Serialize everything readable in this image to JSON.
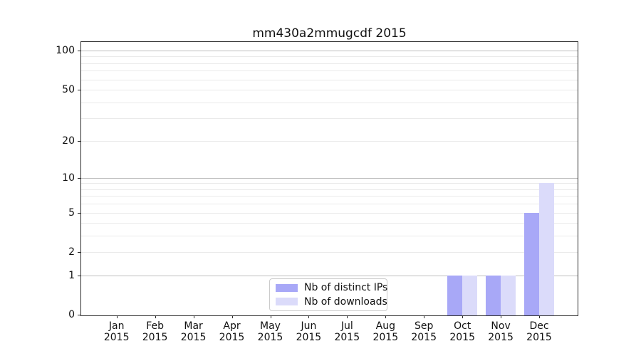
{
  "chart_data": {
    "type": "bar",
    "title": "mm430a2mmugcdf 2015",
    "xlabel": "",
    "ylabel": "",
    "categories": [
      "Jan 2015",
      "Feb 2015",
      "Mar 2015",
      "Apr 2015",
      "May 2015",
      "Jun 2015",
      "Jul 2015",
      "Aug 2015",
      "Sep 2015",
      "Oct 2015",
      "Nov 2015",
      "Dec 2015"
    ],
    "x_tick_months": [
      "Jan",
      "Feb",
      "Mar",
      "Apr",
      "May",
      "Jun",
      "Jul",
      "Aug",
      "Sep",
      "Oct",
      "Nov",
      "Dec"
    ],
    "x_tick_year": "2015",
    "series": [
      {
        "name": "Nb of distinct IPs",
        "color": "#a8a8f7",
        "values": [
          0,
          0,
          0,
          0,
          0,
          0,
          0,
          0,
          0,
          1,
          1,
          5
        ]
      },
      {
        "name": "Nb of downloads",
        "color": "#dbdbfa",
        "values": [
          0,
          0,
          0,
          0,
          0,
          0,
          0,
          0,
          0,
          1,
          1,
          9
        ]
      }
    ],
    "y_scale": "log1p",
    "ylim": [
      0,
      116
    ],
    "y_labeled_ticks": [
      0,
      1,
      2,
      5,
      10,
      20,
      50,
      100
    ],
    "y_major_gridlines": [
      1,
      10,
      100
    ],
    "y_minor_gridlines": [
      2,
      3,
      4,
      5,
      6,
      7,
      8,
      9,
      20,
      30,
      40,
      50,
      60,
      70,
      80,
      90
    ],
    "grid": "horizontal",
    "legend_position": "lower center",
    "colors": {
      "major_grid": "#bdbdbd",
      "minor_grid": "#eaeaea",
      "spine": "#2b2b2b",
      "text": "#111111",
      "background": "#ffffff"
    }
  }
}
